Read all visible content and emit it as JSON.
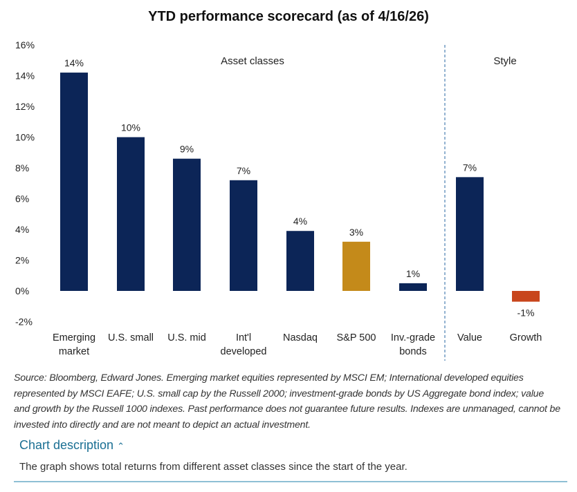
{
  "chart_data": {
    "type": "bar",
    "title": "YTD performance scorecard (as of 4/16/26)",
    "categories": [
      [
        "Emerging",
        "market"
      ],
      [
        "U.S. small"
      ],
      [
        "U.S. mid"
      ],
      [
        "Int'l",
        "developed"
      ],
      [
        "Nasdaq"
      ],
      [
        "S&P 500"
      ],
      [
        "Inv.-grade",
        "bonds"
      ],
      [
        "Value"
      ],
      [
        "Growth"
      ]
    ],
    "values": [
      14.2,
      10.0,
      8.6,
      7.2,
      3.9,
      3.2,
      0.5,
      7.4,
      -0.7
    ],
    "data_labels": [
      "14%",
      "10%",
      "9%",
      "7%",
      "4%",
      "3%",
      "1%",
      "7%",
      "-1%"
    ],
    "colors": [
      "#0c2557",
      "#0c2557",
      "#0c2557",
      "#0c2557",
      "#0c2557",
      "#c48a1a",
      "#0c2557",
      "#0c2557",
      "#c8451c"
    ],
    "ylim": [
      -2,
      16
    ],
    "yticks": [
      -2,
      0,
      2,
      4,
      6,
      8,
      10,
      12,
      14,
      16
    ],
    "ytick_labels": [
      "-2%",
      "0%",
      "2%",
      "4%",
      "6%",
      "8%",
      "10%",
      "12%",
      "14%",
      "16%"
    ],
    "groups": [
      "Asset classes",
      "Style"
    ],
    "xlabel": "",
    "ylabel": "",
    "grid": false
  },
  "source": "Source: Bloomberg, Edward Jones. Emerging market equities represented by MSCI EM; International developed equities represented by MSCI EAFE; U.S. small cap by the Russell 2000; investment-grade bonds by US Aggregate bond index; value and growth by the Russell 1000 indexes. Past performance does not guarantee future results. Indexes are unmanaged, cannot be invested into directly and are not meant to depict an actual investment.",
  "description": {
    "link": "Chart description",
    "icon": "chevron-up-icon",
    "text": "The graph shows total returns from different asset classes since the start of the year."
  }
}
